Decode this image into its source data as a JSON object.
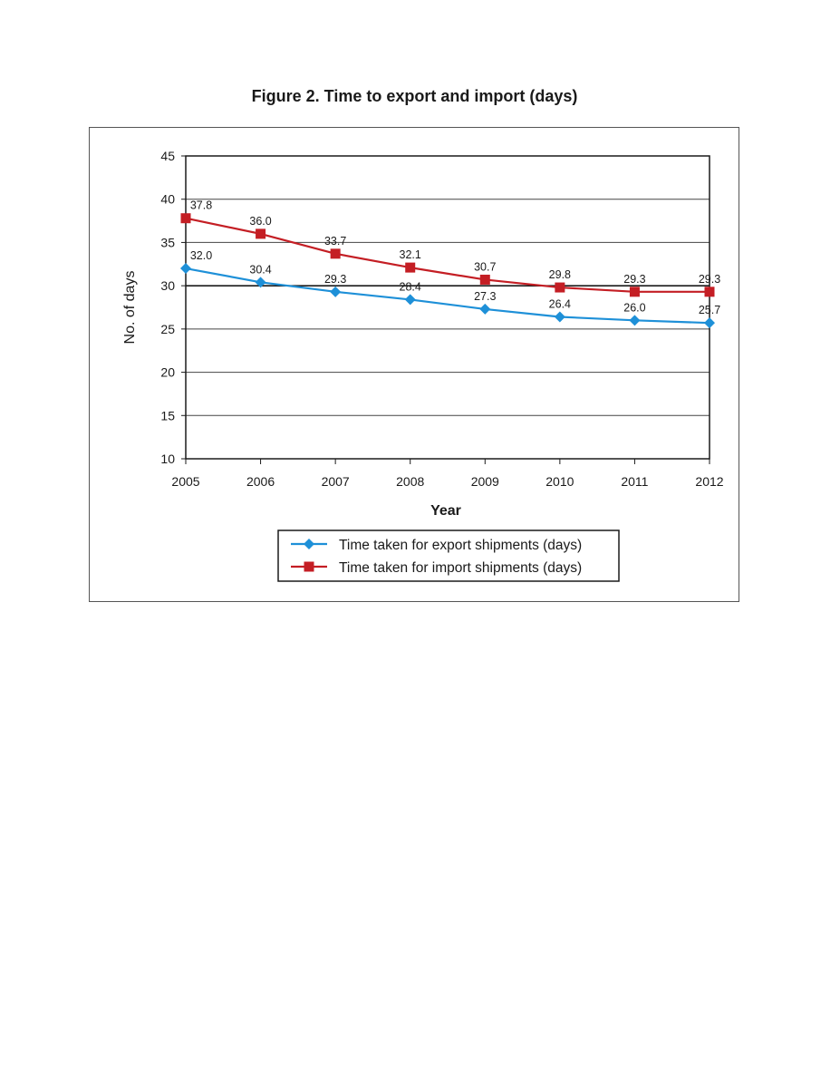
{
  "figure_title": "Figure 2. Time to export and import (days)",
  "chart_data": {
    "type": "line",
    "title": "Figure 2. Time to export and import (days)",
    "xlabel": "Year",
    "ylabel": "No. of days",
    "categories": [
      "2005",
      "2006",
      "2007",
      "2008",
      "2009",
      "2010",
      "2011",
      "2012"
    ],
    "ylim": [
      10,
      45
    ],
    "yticks": [
      10,
      15,
      20,
      25,
      30,
      35,
      40,
      45
    ],
    "grid": true,
    "legend_position": "bottom-center",
    "series": [
      {
        "name": "Time taken for export shipments (days)",
        "marker": "diamond",
        "color": "#1e90d8",
        "values": [
          32.0,
          30.4,
          29.3,
          28.4,
          27.3,
          26.4,
          26.0,
          25.7
        ],
        "labels": [
          "32.0",
          "30.4",
          "29.3",
          "28.4",
          "27.3",
          "26.4",
          "26.0",
          "25.7"
        ]
      },
      {
        "name": "Time taken for import shipments (days)",
        "marker": "square",
        "color": "#c41e24",
        "values": [
          37.8,
          36.0,
          33.7,
          32.1,
          30.7,
          29.8,
          29.3,
          29.3
        ],
        "labels": [
          "37.8",
          "36.0",
          "33.7",
          "32.1",
          "30.7",
          "29.8",
          "29.3",
          "29.3"
        ]
      }
    ]
  }
}
